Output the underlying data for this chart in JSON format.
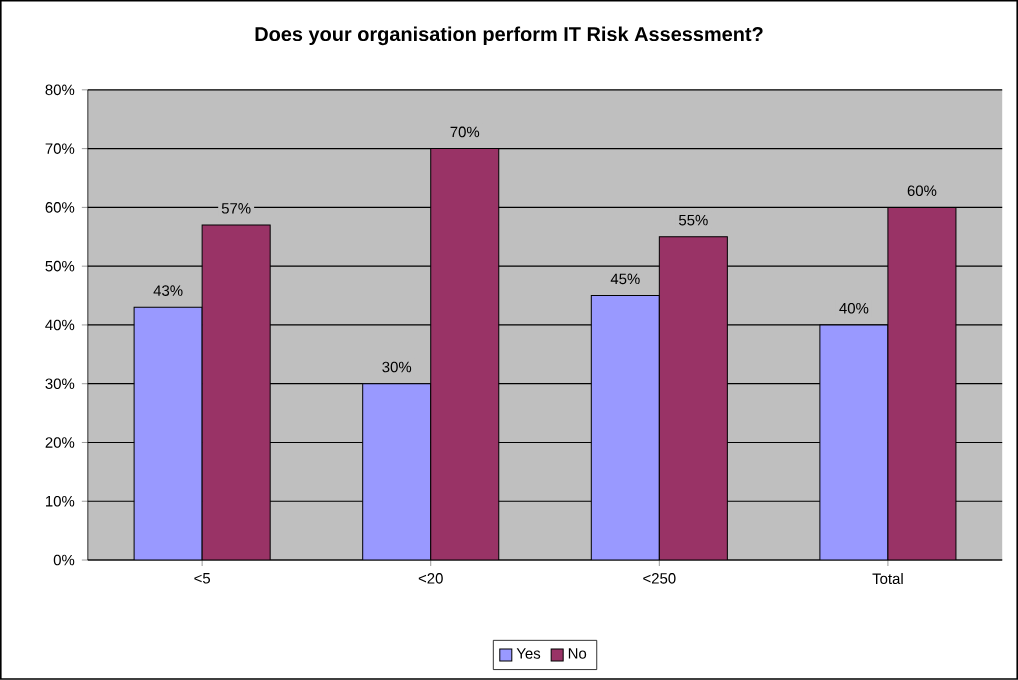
{
  "chart_data": {
    "type": "bar",
    "title": "Does your organisation perform IT Risk Assessment?",
    "categories": [
      "<5",
      "<20",
      "<250",
      "Total"
    ],
    "series": [
      {
        "name": "Yes",
        "color": "#9999ff",
        "values": [
          43,
          30,
          45,
          40
        ],
        "value_labels": [
          "43%",
          "30%",
          "45%",
          "40%"
        ]
      },
      {
        "name": "No",
        "color": "#993366",
        "values": [
          57,
          70,
          55,
          60
        ],
        "value_labels": [
          "57%",
          "70%",
          "55%",
          "60%"
        ]
      }
    ],
    "ylim": [
      0,
      80
    ],
    "yticks": [
      {
        "value": 0,
        "label": "0%"
      },
      {
        "value": 10,
        "label": "10%"
      },
      {
        "value": 20,
        "label": "20%"
      },
      {
        "value": 30,
        "label": "30%"
      },
      {
        "value": 40,
        "label": "40%"
      },
      {
        "value": 50,
        "label": "50%"
      },
      {
        "value": 60,
        "label": "60%"
      },
      {
        "value": 70,
        "label": "70%"
      },
      {
        "value": 80,
        "label": "80%"
      }
    ],
    "grid": "y",
    "legend": "bottom"
  }
}
